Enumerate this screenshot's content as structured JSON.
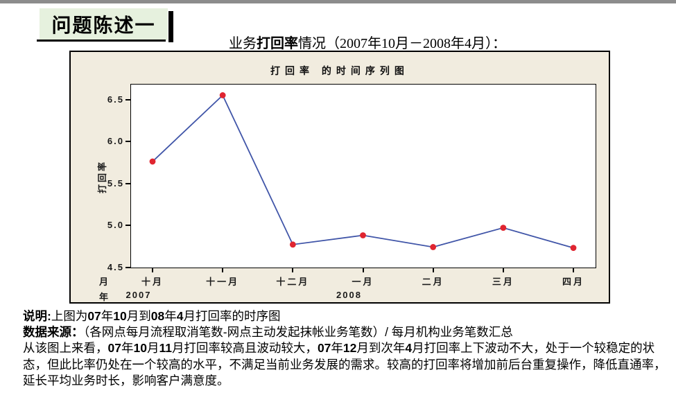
{
  "slide": {
    "badge_title": "问题陈述一",
    "heading_segments": [
      {
        "t": "业务",
        "b": false
      },
      {
        "t": "打回率",
        "b": true
      },
      {
        "t": "情况（2007年10月－2008年4月）：",
        "b": false
      }
    ]
  },
  "chart_data": {
    "type": "line",
    "title": "打回率 的时间序列图",
    "categories": [
      "十月",
      "十一月",
      "十二月",
      "一月",
      "二月",
      "三月",
      "四月"
    ],
    "values": [
      5.76,
      6.55,
      4.77,
      4.88,
      4.74,
      4.97,
      4.73
    ],
    "ylabel": "打回率",
    "xlabel": "",
    "yticks": [
      6.5,
      6.0,
      5.5,
      5.0,
      4.5
    ],
    "ylim": [
      4.5,
      6.5
    ],
    "x_prefix_month": "月",
    "x_prefix_year": "年",
    "years": [
      {
        "label": "2007",
        "month_index": 0
      },
      {
        "label": "2008",
        "month_index": 3
      }
    ],
    "grid": false,
    "legend": "none",
    "line_color": "#4055a8",
    "point_color": "#e02530",
    "frame_bg": "#f1ecdf"
  },
  "notes": {
    "line1_segments": [
      {
        "t": "说明:",
        "b": true
      },
      {
        "t": "上图为",
        "b": false
      },
      {
        "t": "07",
        "b": true
      },
      {
        "t": "年",
        "b": false
      },
      {
        "t": "10",
        "b": true
      },
      {
        "t": "月到",
        "b": false
      },
      {
        "t": "08",
        "b": true
      },
      {
        "t": "年",
        "b": false
      },
      {
        "t": "4",
        "b": true
      },
      {
        "t": "月打回率的时序图",
        "b": false
      }
    ],
    "line2_segments": [
      {
        "t": "数据来源：",
        "b": true
      },
      {
        "t": "（各网点每月流程取消笔数-网点主动发起抹帐业务笔数）/ 每月机构业务笔数汇总",
        "b": false
      }
    ],
    "paragraph_segments": [
      {
        "t": "从该图上来看，",
        "b": false
      },
      {
        "t": "07",
        "b": true
      },
      {
        "t": "年",
        "b": false
      },
      {
        "t": "10",
        "b": true
      },
      {
        "t": "月",
        "b": false
      },
      {
        "t": "11",
        "b": true
      },
      {
        "t": "月打回率较高且波动较大，",
        "b": false
      },
      {
        "t": "07",
        "b": true
      },
      {
        "t": "年",
        "b": false
      },
      {
        "t": "12",
        "b": true
      },
      {
        "t": "月到次年",
        "b": false
      },
      {
        "t": "4",
        "b": true
      },
      {
        "t": "月打回率上下波动不大，处于一个较稳定的状态，但此比率仍处在一个较高的水平，不满足当前业务发展的需求。较高的打回率将增加前后台重复操作，降低直通率，延长平均业务时长，影响客户满意度。",
        "b": false
      }
    ]
  }
}
